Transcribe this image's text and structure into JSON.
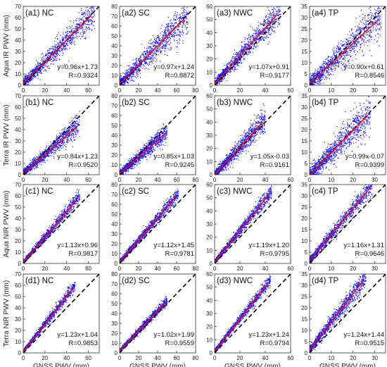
{
  "figure": {
    "row_ylabels": [
      "Aqua IR PWV (mm)",
      "Terra IR PWV (mm)",
      "Aqua NIR PWV (mm)",
      "Terra NIR PWV (mm)"
    ],
    "col_xlabel": "GNSS PWV (mm)",
    "colors": {
      "points": "#1010ff",
      "fit": "#ff0000",
      "reference": "#000000"
    }
  },
  "chart_data": [
    {
      "type": "scatter",
      "panel": "(a1) NC",
      "equation": "y=0.96x+1.73",
      "r": "R=0.9324",
      "slope": 0.96,
      "intercept": 1.73,
      "xlim": [
        0,
        70
      ],
      "ylim": [
        0,
        70
      ],
      "xticks": [
        0,
        20,
        40,
        60
      ],
      "yticks": [
        0,
        10,
        20,
        30,
        40,
        50,
        60,
        70
      ],
      "data_xmax": 66,
      "spread": 5.5
    },
    {
      "type": "scatter",
      "panel": "(a2) SC",
      "equation": "y=0.97x+1.24",
      "r": "R=0.8872",
      "slope": 0.97,
      "intercept": 1.24,
      "xlim": [
        0,
        80
      ],
      "ylim": [
        0,
        80
      ],
      "xticks": [
        0,
        20,
        40,
        60,
        80
      ],
      "yticks": [
        0,
        10,
        20,
        30,
        40,
        50,
        60,
        70,
        80
      ],
      "data_xmax": 72,
      "spread": 7.5
    },
    {
      "type": "scatter",
      "panel": "(a3) NWC",
      "equation": "y=1.07x+0.91",
      "r": "R=0.9177",
      "slope": 1.07,
      "intercept": 0.91,
      "xlim": [
        0,
        60
      ],
      "ylim": [
        0,
        60
      ],
      "xticks": [
        0,
        20,
        40,
        60
      ],
      "yticks": [
        0,
        10,
        20,
        30,
        40,
        50,
        60
      ],
      "data_xmax": 52,
      "spread": 4.5
    },
    {
      "type": "scatter",
      "panel": "(a4) TP",
      "equation": "y=0.90x+0.61",
      "r": "R=0.8546",
      "slope": 0.9,
      "intercept": 0.61,
      "xlim": [
        0,
        35
      ],
      "ylim": [
        0,
        35
      ],
      "xticks": [
        0,
        10,
        20,
        30
      ],
      "yticks": [
        0,
        5,
        10,
        15,
        20,
        25,
        30,
        35
      ],
      "data_xmax": 33,
      "spread": 3.8
    },
    {
      "type": "scatter",
      "panel": "(b1) NC",
      "equation": "y=0.84x+1.23",
      "r": "R=0.9520",
      "slope": 0.84,
      "intercept": 1.23,
      "xlim": [
        0,
        70
      ],
      "ylim": [
        0,
        70
      ],
      "xticks": [
        0,
        20,
        40,
        60
      ],
      "yticks": [
        0,
        10,
        20,
        30,
        40,
        50,
        60,
        70
      ],
      "data_xmax": 52,
      "spread": 4.0
    },
    {
      "type": "scatter",
      "panel": "(b2) SC",
      "equation": "y=0.85x+1.03",
      "r": "R=0.9245",
      "slope": 0.85,
      "intercept": 1.03,
      "xlim": [
        0,
        80
      ],
      "ylim": [
        0,
        80
      ],
      "xticks": [
        0,
        20,
        40,
        60,
        80
      ],
      "yticks": [
        0,
        10,
        20,
        30,
        40,
        50,
        60,
        70,
        80
      ],
      "data_xmax": 50,
      "spread": 4.0
    },
    {
      "type": "scatter",
      "panel": "(b3) NWC",
      "equation": "y=1.05x-0.03",
      "r": "R=0.9161",
      "slope": 1.05,
      "intercept": -0.03,
      "xlim": [
        0,
        60
      ],
      "ylim": [
        0,
        60
      ],
      "xticks": [
        0,
        20,
        40,
        60
      ],
      "yticks": [
        0,
        10,
        20,
        30,
        40,
        50,
        60
      ],
      "data_xmax": 40,
      "spread": 4.0
    },
    {
      "type": "scatter",
      "panel": "(b4) TP",
      "equation": "y=0.99x-0.07",
      "r": "R=0.9399",
      "slope": 0.99,
      "intercept": -0.07,
      "xlim": [
        0,
        35
      ],
      "ylim": [
        0,
        35
      ],
      "xticks": [
        0,
        10,
        20,
        30
      ],
      "yticks": [
        0,
        5,
        10,
        15,
        20,
        25,
        30,
        35
      ],
      "data_xmax": 28,
      "spread": 3.5
    },
    {
      "type": "scatter",
      "panel": "(c1) NC",
      "equation": "y=1.13x+0.96",
      "r": "R=0.9817",
      "slope": 1.13,
      "intercept": 0.96,
      "xlim": [
        0,
        70
      ],
      "ylim": [
        0,
        70
      ],
      "xticks": [
        0,
        20,
        40,
        60
      ],
      "yticks": [
        0,
        10,
        20,
        30,
        40,
        50,
        60,
        70
      ],
      "data_xmax": 52,
      "spread": 2.5
    },
    {
      "type": "scatter",
      "panel": "(c2) SC",
      "equation": "y=1.12x+1.45",
      "r": "R=0.9781",
      "slope": 1.12,
      "intercept": 1.45,
      "xlim": [
        0,
        80
      ],
      "ylim": [
        0,
        80
      ],
      "xticks": [
        0,
        20,
        40,
        60,
        80
      ],
      "yticks": [
        0,
        10,
        20,
        30,
        40,
        50,
        60,
        70,
        80
      ],
      "data_xmax": 62,
      "spread": 3.0
    },
    {
      "type": "scatter",
      "panel": "(c3) NWC",
      "equation": "y=1.19x+1.20",
      "r": "R=0.9795",
      "slope": 1.19,
      "intercept": 1.2,
      "xlim": [
        0,
        60
      ],
      "ylim": [
        0,
        60
      ],
      "xticks": [
        0,
        20,
        40,
        60
      ],
      "yticks": [
        0,
        10,
        20,
        30,
        40,
        50,
        60
      ],
      "data_xmax": 45,
      "spread": 2.3
    },
    {
      "type": "scatter",
      "panel": "(c4) TP",
      "equation": "y=1.16x+1.31",
      "r": "R=0.9646",
      "slope": 1.16,
      "intercept": 1.31,
      "xlim": [
        0,
        35
      ],
      "ylim": [
        0,
        35
      ],
      "xticks": [
        0,
        10,
        20,
        30
      ],
      "yticks": [
        0,
        5,
        10,
        15,
        20,
        25,
        30,
        35
      ],
      "data_xmax": 29,
      "spread": 1.8
    },
    {
      "type": "scatter",
      "panel": "(d1) NC",
      "equation": "y=1.23x+1.04",
      "r": "R=0.9853",
      "slope": 1.23,
      "intercept": 1.04,
      "xlim": [
        0,
        70
      ],
      "ylim": [
        0,
        70
      ],
      "xticks": [
        0,
        20,
        40,
        60
      ],
      "yticks": [
        0,
        10,
        20,
        30,
        40,
        50,
        60,
        70
      ],
      "data_xmax": 48,
      "spread": 2.2
    },
    {
      "type": "scatter",
      "panel": "(d2) SC",
      "equation": "y=1.02x+1.99",
      "r": "R=0.9559",
      "slope": 1.02,
      "intercept": 1.99,
      "xlim": [
        0,
        80
      ],
      "ylim": [
        0,
        80
      ],
      "xticks": [
        0,
        20,
        40,
        60,
        80
      ],
      "yticks": [
        0,
        10,
        20,
        30,
        40,
        50,
        60,
        70,
        80
      ],
      "data_xmax": 50,
      "spread": 2.2
    },
    {
      "type": "scatter",
      "panel": "(d3) NWC",
      "equation": "y=1.23x+1.24",
      "r": "R=0.9794",
      "slope": 1.23,
      "intercept": 1.24,
      "xlim": [
        0,
        60
      ],
      "ylim": [
        0,
        60
      ],
      "xticks": [
        0,
        20,
        40,
        60
      ],
      "yticks": [
        0,
        10,
        20,
        30,
        40,
        50,
        60
      ],
      "data_xmax": 44,
      "spread": 2.0
    },
    {
      "type": "scatter",
      "panel": "(d4) TP",
      "equation": "y=1.24x+1.44",
      "r": "R=0.9515",
      "slope": 1.24,
      "intercept": 1.44,
      "xlim": [
        0,
        35
      ],
      "ylim": [
        0,
        35
      ],
      "xticks": [
        0,
        10,
        20,
        30
      ],
      "yticks": [
        0,
        5,
        10,
        15,
        20,
        25,
        30,
        35
      ],
      "data_xmax": 26,
      "spread": 2.0
    }
  ]
}
